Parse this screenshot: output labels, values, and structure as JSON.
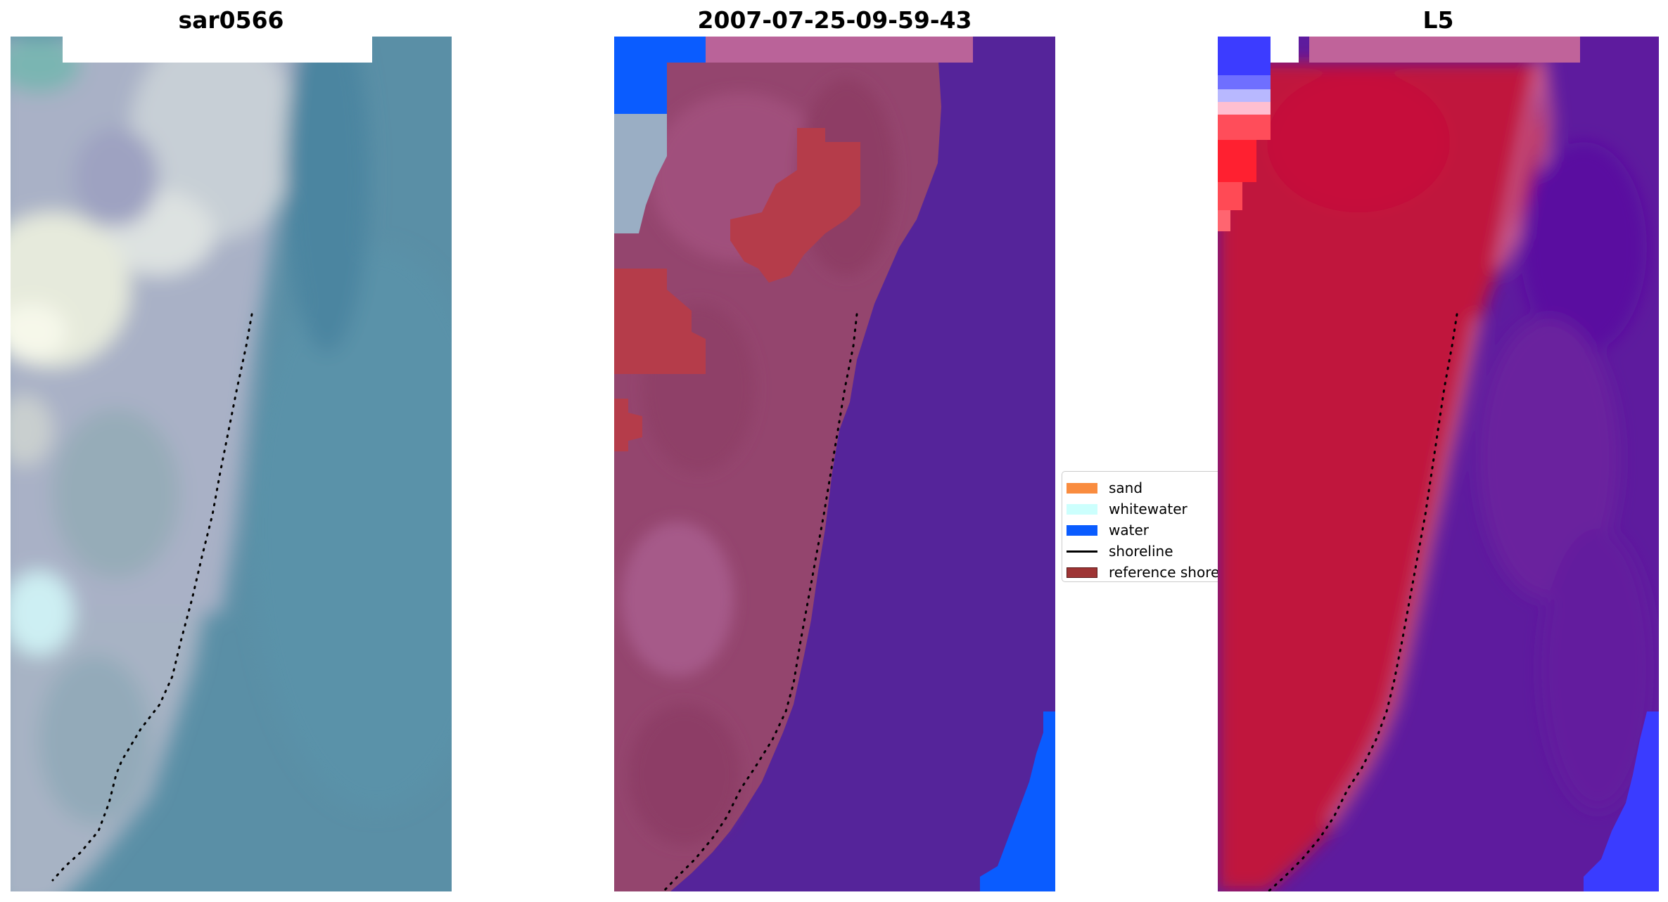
{
  "panels": [
    {
      "title": "sar0566"
    },
    {
      "title": "2007-07-25-09-59-43"
    },
    {
      "title": "L5"
    }
  ],
  "legend": {
    "items": [
      {
        "label": "sand",
        "kind": "patch",
        "color": "#f98c3f"
      },
      {
        "label": "whitewater",
        "kind": "patch",
        "color": "#ccfffd"
      },
      {
        "label": "water",
        "kind": "patch",
        "color": "#0a5cff"
      },
      {
        "label": "shoreline",
        "kind": "line",
        "color": "#000000"
      },
      {
        "label": "reference shoreline",
        "kind": "patch",
        "color": "#9e3434"
      }
    ]
  },
  "colors": {
    "rgb_water": "#5a8fa6",
    "rgb_land": "#a7b5c4",
    "class_water": "#0a5cff",
    "class_ocean_overlay": "#55249a",
    "class_land_overlay": "#97466f",
    "class_reference": "#b33b4e",
    "index_land": "#c0143e",
    "index_water": "#5e1b9e",
    "index_blue": "#3c3cff",
    "shoreline": "#000000"
  }
}
